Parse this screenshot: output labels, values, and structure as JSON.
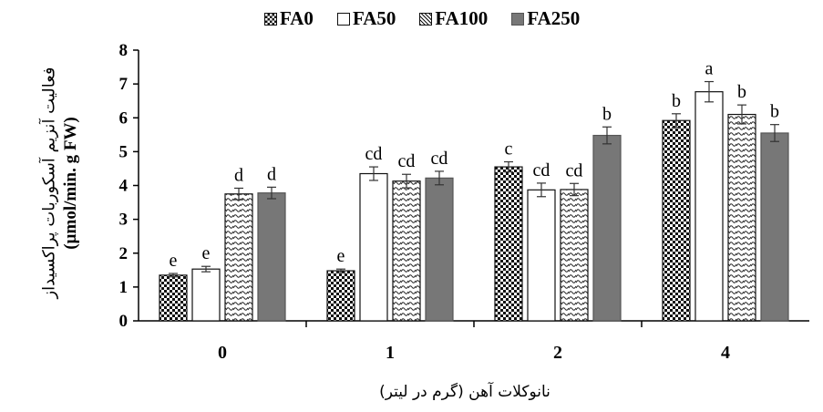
{
  "chart_data": {
    "type": "bar",
    "categories": [
      "0",
      "1",
      "2",
      "4"
    ],
    "series": [
      {
        "name": "FA0",
        "pattern": "checker",
        "values": [
          1.35,
          1.48,
          4.55,
          5.92
        ],
        "errors": [
          0.05,
          0.05,
          0.15,
          0.2
        ],
        "letters": [
          "e",
          "e",
          "c",
          "b"
        ]
      },
      {
        "name": "FA50",
        "pattern": "white",
        "values": [
          1.53,
          4.35,
          3.87,
          6.77
        ],
        "errors": [
          0.08,
          0.2,
          0.2,
          0.3
        ],
        "letters": [
          "e",
          "cd",
          "cd",
          "a"
        ]
      },
      {
        "name": "FA100",
        "pattern": "wave",
        "values": [
          3.75,
          4.13,
          3.88,
          6.1
        ],
        "errors": [
          0.17,
          0.2,
          0.18,
          0.28
        ],
        "letters": [
          "d",
          "cd",
          "cd",
          "b"
        ]
      },
      {
        "name": "FA250",
        "pattern": "gray",
        "values": [
          3.78,
          4.22,
          5.48,
          5.55
        ],
        "errors": [
          0.17,
          0.2,
          0.25,
          0.25
        ],
        "letters": [
          "d",
          "cd",
          "b",
          "b"
        ]
      }
    ],
    "ylim": [
      0,
      8
    ],
    "yticks": [
      "0",
      "1",
      "2",
      "3",
      "4",
      "5",
      "6",
      "7",
      "8"
    ],
    "ylabel_fa": "فعالیت آنزیم آسکوربات پراکسیداز",
    "ylabel_en": "(µmol/min. g FW)",
    "xlabel": "نانوکلات آهن (گرم در لیتر)",
    "legend_position": "top",
    "grid": false,
    "colors": {
      "gray": "#777777",
      "dark": "#111111",
      "axis": "#000000"
    }
  }
}
